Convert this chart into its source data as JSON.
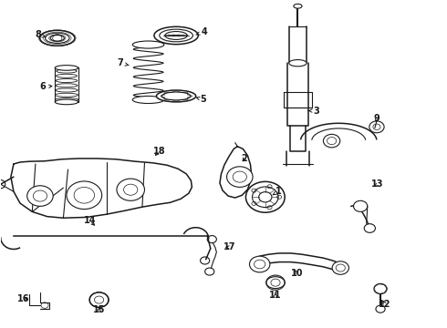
{
  "bg_color": "#ffffff",
  "line_color": "#1a1a1a",
  "figsize": [
    4.9,
    3.6
  ],
  "dpi": 100,
  "label_positions": {
    "1": [
      0.595,
      0.455,
      0.615,
      0.478
    ],
    "2": [
      0.545,
      0.535,
      0.545,
      0.558
    ],
    "3": [
      0.695,
      0.69,
      0.72,
      0.69
    ],
    "4": [
      0.435,
      0.9,
      0.46,
      0.91
    ],
    "5": [
      0.43,
      0.73,
      0.455,
      0.72
    ],
    "6": [
      0.145,
      0.755,
      0.118,
      0.755
    ],
    "7": [
      0.3,
      0.81,
      0.278,
      0.82
    ],
    "8": [
      0.145,
      0.888,
      0.12,
      0.897
    ],
    "9": [
      0.828,
      0.66,
      0.828,
      0.68
    ],
    "10": [
      0.65,
      0.278,
      0.65,
      0.252
    ],
    "11": [
      0.615,
      0.218,
      0.615,
      0.188
    ],
    "12": [
      0.828,
      0.195,
      0.838,
      0.165
    ],
    "13": [
      0.815,
      0.478,
      0.825,
      0.5
    ],
    "14": [
      0.232,
      0.368,
      0.22,
      0.395
    ],
    "15": [
      0.233,
      0.178,
      0.233,
      0.15
    ],
    "16": [
      0.108,
      0.17,
      0.082,
      0.178
    ],
    "17": [
      0.487,
      0.312,
      0.51,
      0.318
    ],
    "18": [
      0.35,
      0.562,
      0.362,
      0.582
    ]
  }
}
